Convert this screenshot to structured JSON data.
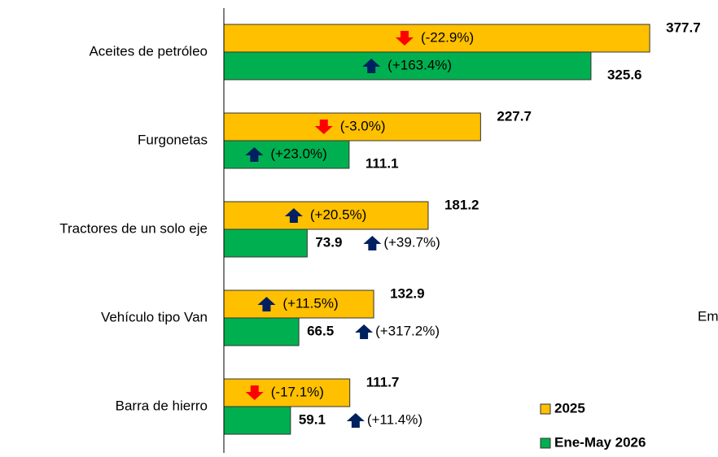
{
  "chart_data": {
    "type": "bar",
    "orientation": "horizontal",
    "categories": [
      "Aceites de petróleo",
      "Furgonetas",
      "Tractores de un solo eje",
      "Vehículo tipo Van",
      "Barra de hierro"
    ],
    "series": [
      {
        "name": "2025",
        "color": "#FFC000",
        "values": [
          377.7,
          227.7,
          181.2,
          132.9,
          111.7
        ],
        "changes": [
          -22.9,
          -3.0,
          20.5,
          11.5,
          -17.1
        ],
        "change_labels": [
          "(-22.9%)",
          "(-3.0%)",
          "(+20.5%)",
          "(+11.5%)",
          "(-17.1%)"
        ]
      },
      {
        "name": "Ene-May 2026",
        "color": "#00B050",
        "values": [
          325.6,
          111.1,
          73.9,
          66.5,
          59.1
        ],
        "changes": [
          163.4,
          23.0,
          39.7,
          317.2,
          11.4
        ],
        "change_labels": [
          "(+163.4%)",
          "(+23.0%)",
          "(+39.7%)",
          "(+317.2%)",
          "(+11.4%)"
        ]
      }
    ],
    "up_color": "#002060",
    "down_color": "#FF0000",
    "side_text": "Em",
    "legend": "bottom-right"
  }
}
